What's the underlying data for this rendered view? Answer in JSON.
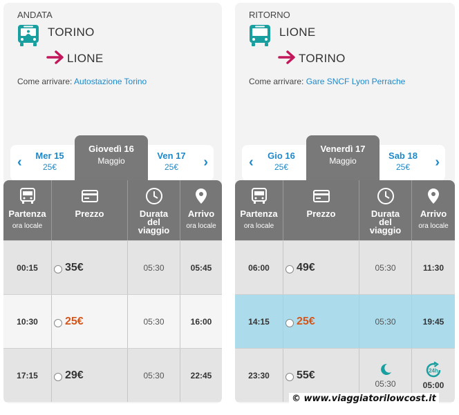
{
  "colors": {
    "accent": "#1e88c9",
    "teal": "#1a9fa0",
    "arrow": "#c2185b",
    "best_price": "#d4561a",
    "header_gray": "#777777",
    "highlight_row": "#acdbec"
  },
  "left": {
    "direction": "ANDATA",
    "from": "TORINO",
    "to": "LIONE",
    "come_label": "Come arrivare:",
    "come_link": "Autostazione Torino",
    "prev_day": {
      "date": "Mer 15",
      "price": "25€"
    },
    "selected_day": {
      "date": "Giovedì 16",
      "month": "Maggio"
    },
    "next_day": {
      "date": "Ven 17",
      "price": "25€"
    },
    "headers": {
      "partenza": "Partenza",
      "partenza_sub": "ora locale",
      "prezzo": "Prezzo",
      "durata": "Durata del viaggio",
      "arrivo": "Arrivo",
      "arrivo_sub": "ora locale"
    },
    "rows": [
      {
        "dep": "00:15",
        "price": "35€",
        "duration": "05:30",
        "arr": "05:45"
      },
      {
        "dep": "10:30",
        "price": "25€",
        "duration": "05:30",
        "arr": "16:00"
      },
      {
        "dep": "17:15",
        "price": "29€",
        "duration": "05:30",
        "arr": "22:45"
      }
    ]
  },
  "right": {
    "direction": "RITORNO",
    "from": "LIONE",
    "to": "TORINO",
    "come_label": "Come arrivare:",
    "come_link": "Gare SNCF Lyon Perrache",
    "prev_day": {
      "date": "Gio 16",
      "price": "25€"
    },
    "selected_day": {
      "date": "Venerdì 17",
      "month": "Maggio"
    },
    "next_day": {
      "date": "Sab 18",
      "price": "25€"
    },
    "headers": {
      "partenza": "Partenza",
      "partenza_sub": "ora locale",
      "prezzo": "Prezzo",
      "durata": "Durata del viaggio",
      "arrivo": "Arrivo",
      "arrivo_sub": "ora locale"
    },
    "rows": [
      {
        "dep": "06:00",
        "price": "49€",
        "duration": "05:30",
        "arr": "11:30"
      },
      {
        "dep": "14:15",
        "price": "25€",
        "duration": "05:30",
        "arr": "19:45"
      },
      {
        "dep": "23:30",
        "price": "55€",
        "duration": "05:30",
        "arr": "05:00"
      }
    ],
    "night_badge": "24h"
  },
  "watermark": "© www.viaggiatorilowcost.it"
}
